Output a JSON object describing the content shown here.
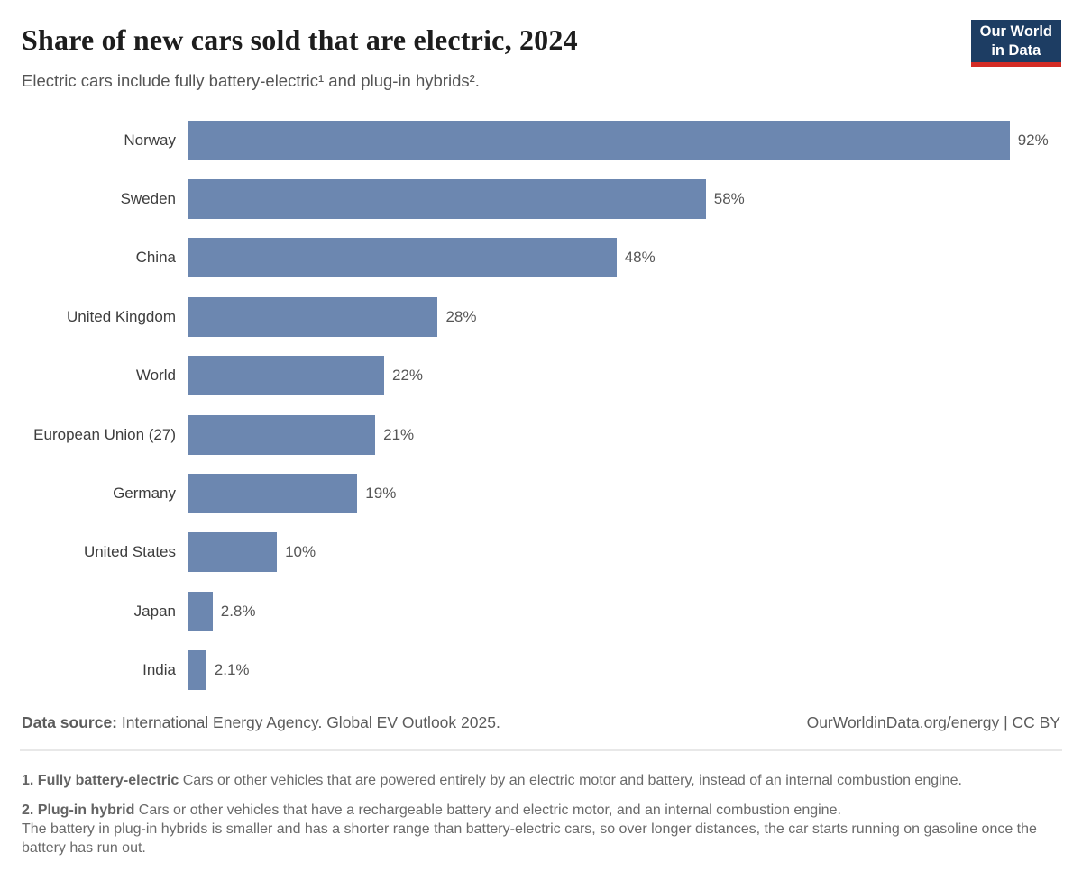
{
  "header": {
    "title": "Share of new cars sold that are electric, 2024",
    "subtitle": "Electric cars include fully battery-electric¹ and plug-in hybrids².",
    "logo": {
      "line1": "Our World",
      "line2": "in Data",
      "bg_color": "#1d3d63",
      "accent_color": "#d42b24"
    }
  },
  "chart_data": {
    "type": "bar",
    "orientation": "horizontal",
    "title": "Share of new cars sold that are electric, 2024",
    "xlabel": "",
    "ylabel": "",
    "xlim": [
      0,
      100
    ],
    "grid": false,
    "legend": false,
    "bar_color": "#6c87b0",
    "categories": [
      "Norway",
      "Sweden",
      "China",
      "United Kingdom",
      "World",
      "European Union (27)",
      "Germany",
      "United States",
      "Japan",
      "India"
    ],
    "values": [
      92,
      58,
      48,
      28,
      22,
      21,
      19,
      10,
      2.8,
      2.1
    ],
    "value_labels": [
      "92%",
      "58%",
      "48%",
      "28%",
      "22%",
      "21%",
      "19%",
      "10%",
      "2.8%",
      "2.1%"
    ]
  },
  "footer": {
    "source_label": "Data source:",
    "source_text": " International Energy Agency. Global EV Outlook 2025.",
    "attribution": "OurWorldinData.org/energy | CC BY"
  },
  "footnotes": {
    "note1_bold": "1. Fully battery-electric",
    "note1_text": " Cars or other vehicles that are powered entirely by an electric motor and battery, instead of an internal combustion engine.",
    "note2_bold": "2. Plug-in hybrid",
    "note2_text": " Cars or other vehicles that have a rechargeable battery and electric motor, and an internal combustion engine.",
    "note2_cont": "The battery in plug-in hybrids is smaller and has a shorter range than battery-electric cars, so over longer distances, the car starts running on gasoline once the battery has run out."
  }
}
